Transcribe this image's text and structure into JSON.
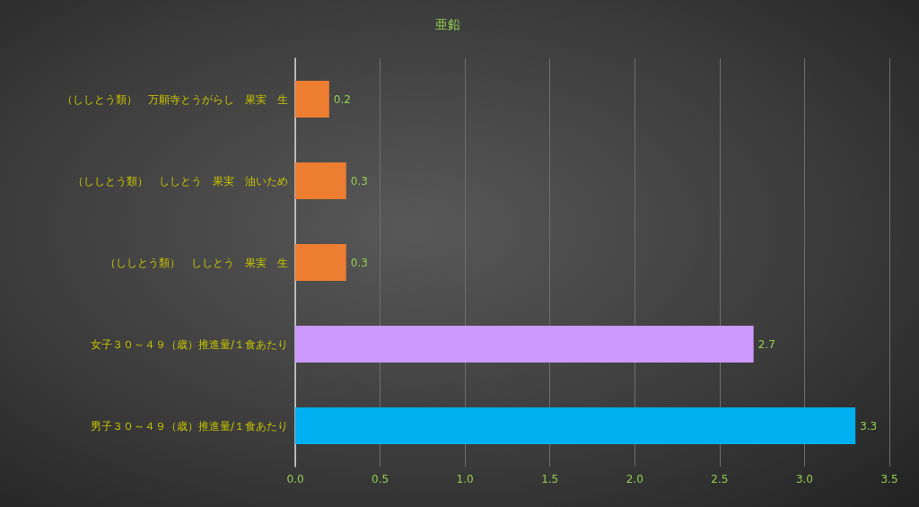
{
  "chart_data": {
    "type": "bar",
    "title": "亜鉛",
    "orientation": "horizontal",
    "categories": [
      "（ししとう類）　万願寺とうがらし　果実　生",
      "（ししとう類）　ししとう　果実　油いため",
      "（ししとう類）　ししとう　果実　生",
      "女子３０～４９（歳）推進量/１食あたり",
      "男子３０～４９（歳）推進量/１食あたり"
    ],
    "values": [
      0.2,
      0.3,
      0.3,
      2.7,
      3.3
    ],
    "colors": [
      "#ed7d31",
      "#ed7d31",
      "#ed7d31",
      "#cc99ff",
      "#00b0f0"
    ],
    "xlim": [
      0,
      3.5
    ],
    "xticks": [
      {
        "value": 0,
        "label": "0.0"
      },
      0.5,
      {
        "value": 1,
        "label": "1.0"
      },
      1.5,
      {
        "value": 2,
        "label": "2.0"
      },
      2.5,
      {
        "value": 3,
        "label": "3.0"
      },
      3.5
    ],
    "grid": "x",
    "data_labels": true
  }
}
